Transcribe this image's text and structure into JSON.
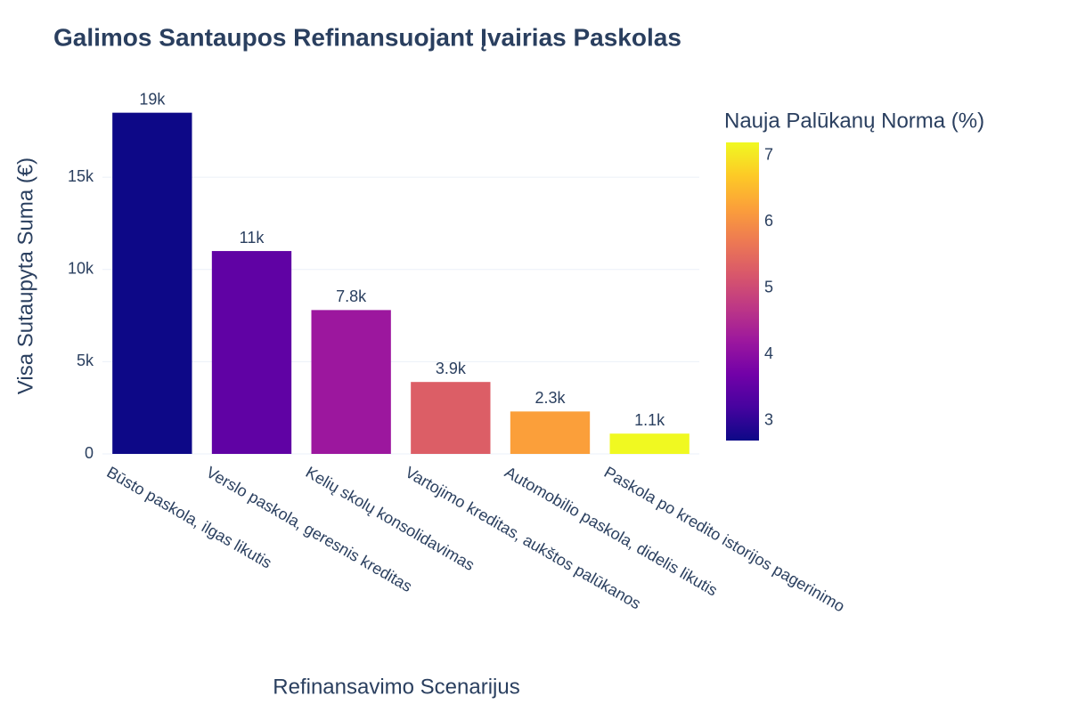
{
  "chart_data": {
    "type": "bar",
    "title": "Galimos Santaupos Refinansuojant Įvairias Paskolas",
    "x_label": "Refinansavimo Scenarijus",
    "y_label": "Visa Sutaupyta Suma (€)",
    "categories": [
      "Būsto paskola, ilgas likutis",
      "Verslo paskola, geresnis kreditas",
      "Kelių skolų konsolidavimas",
      "Vartojimo kreditas, aukštos palūkanos",
      "Automobilio paskola, didelis likutis",
      "Paskola po kredito istorijos pagerinimo"
    ],
    "values": [
      18500,
      11000,
      7800,
      3900,
      2300,
      1100
    ],
    "value_labels": [
      "19k",
      "11k",
      "7.8k",
      "3.9k",
      "2.3k",
      "1.1k"
    ],
    "color_values": [
      2.7,
      3.5,
      4.2,
      5.3,
      6.2,
      7.2
    ],
    "colorbar_title": "Nauja Palūkanų Norma (%)",
    "clim": [
      2.7,
      7.2
    ],
    "cticks": [
      3,
      4,
      5,
      6,
      7
    ],
    "colorscale": [
      "#0d0887",
      "#46039f",
      "#7201a8",
      "#9c179e",
      "#bd3786",
      "#d8576b",
      "#ed7953",
      "#fb9f3a",
      "#fdca26",
      "#f0f921"
    ],
    "ylim": [
      0,
      19400
    ],
    "yticks": [
      0,
      {
        "value": 5000,
        "label": "5k"
      },
      {
        "value": 10000,
        "label": "10k"
      },
      {
        "value": 15000,
        "label": "15k"
      }
    ],
    "grid": true
  }
}
